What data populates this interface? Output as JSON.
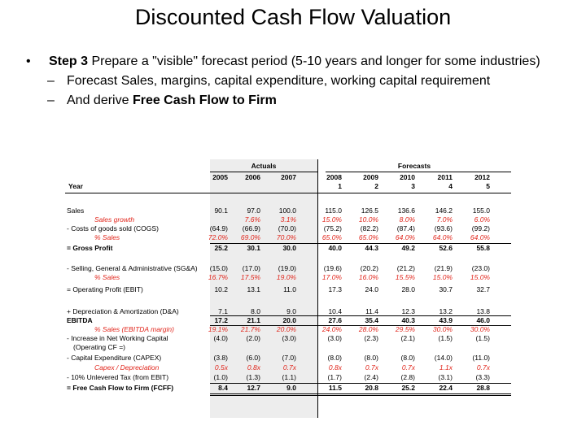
{
  "slide": {
    "title": "Discounted Cash Flow Valuation",
    "bullet_marker": "•",
    "step_label": "Step 3",
    "step_text": " Prepare a \"visible\" forecast period (5-10 years and longer for some industries)",
    "dash": "–",
    "sub1": "Forecast Sales, margins, capital expenditure, working capital requirement",
    "sub2_prefix": "And derive ",
    "sub2_bold": "Free Cash Flow to Firm"
  },
  "table": {
    "actuals_label": "Actuals",
    "forecasts_label": "Forecasts",
    "year_label": "Year",
    "year_columns": [
      "2005",
      "2006",
      "2007",
      "2008",
      "2009",
      "2010",
      "2011",
      "2012"
    ],
    "forecast_index": [
      "1",
      "2",
      "3",
      "4",
      "5"
    ],
    "rows": [
      {
        "label": "Sales",
        "values": [
          "90.1",
          "97.0",
          "100.0",
          "115.0",
          "126.5",
          "136.6",
          "146.2",
          "155.0"
        ]
      },
      {
        "label": "Sales growth",
        "values": [
          "",
          "7.6%",
          "3.1%",
          "15.0%",
          "10.0%",
          "8.0%",
          "7.0%",
          "6.0%"
        ]
      },
      {
        "label": "- Costs of goods sold (COGS)",
        "values": [
          "(64.9)",
          "(66.9)",
          "(70.0)",
          "(75.2)",
          "(82.2)",
          "(87.4)",
          "(93.6)",
          "(99.2)"
        ]
      },
      {
        "label": "% Sales",
        "values": [
          "72.0%",
          "69.0%",
          "70.0%",
          "65.0%",
          "65.0%",
          "64.0%",
          "64.0%",
          "64.0%"
        ]
      },
      {
        "label": "= Gross Profit",
        "values": [
          "25.2",
          "30.1",
          "30.0",
          "40.0",
          "44.3",
          "49.2",
          "52.6",
          "55.8"
        ]
      },
      {
        "label": "- Selling, General & Administrative (SG&A)",
        "values": [
          "(15.0)",
          "(17.0)",
          "(19.0)",
          "(19.6)",
          "(20.2)",
          "(21.2)",
          "(21.9)",
          "(23.0)"
        ]
      },
      {
        "label": "% Sales",
        "values": [
          "16.7%",
          "17.5%",
          "19.0%",
          "17.0%",
          "16.0%",
          "15.5%",
          "15.0%",
          "15.0%"
        ]
      },
      {
        "label": "= Operating Profit (EBIT)",
        "values": [
          "10.2",
          "13.1",
          "11.0",
          "17.3",
          "24.0",
          "28.0",
          "30.7",
          "32.7"
        ]
      },
      {
        "label": "+ Depreciation & Amortization (D&A)",
        "values": [
          "7.1",
          "8.0",
          "9.0",
          "10.4",
          "11.4",
          "12.3",
          "13.2",
          "13.8"
        ]
      },
      {
        "label": "EBITDA",
        "values": [
          "17.2",
          "21.1",
          "20.0",
          "27.6",
          "35.4",
          "40.3",
          "43.9",
          "46.0"
        ]
      },
      {
        "label": "% Sales (EBITDA margin)",
        "values": [
          "19.1%",
          "21.7%",
          "20.0%",
          "24.0%",
          "28.0%",
          "29.5%",
          "30.0%",
          "30.0%"
        ]
      },
      {
        "label": "- Increase in Net Working Capital",
        "values": [
          "(4.0)",
          "(2.0)",
          "(3.0)",
          "(3.0)",
          "(2.3)",
          "(2.1)",
          "(1.5)",
          "(1.5)"
        ]
      },
      {
        "label": "(Operating CF =)",
        "values": [
          "",
          "",
          "",
          "",
          "",
          "",
          "",
          ""
        ]
      },
      {
        "label": "- Capital Expenditure (CAPEX)",
        "values": [
          "(3.8)",
          "(6.0)",
          "(7.0)",
          "(8.0)",
          "(8.0)",
          "(8.0)",
          "(14.0)",
          "(11.0)"
        ]
      },
      {
        "label": "Capex / Depreciation",
        "values": [
          "0.5x",
          "0.8x",
          "0.7x",
          "0.8x",
          "0.7x",
          "0.7x",
          "1.1x",
          "0.7x"
        ]
      },
      {
        "label": "- 10% Unlevered Tax (from EBIT)",
        "values": [
          "(1.0)",
          "(1.3)",
          "(1.1)",
          "(1.7)",
          "(2.4)",
          "(2.8)",
          "(3.1)",
          "(3.3)"
        ]
      },
      {
        "label": "= Free Cash Flow to Firm (FCFF)",
        "values": [
          "8.4",
          "12.7",
          "9.0",
          "11.5",
          "20.8",
          "25.2",
          "22.4",
          "28.8"
        ]
      }
    ],
    "colors": {
      "shade": "#ededed",
      "red_text": "#e1261c"
    }
  }
}
